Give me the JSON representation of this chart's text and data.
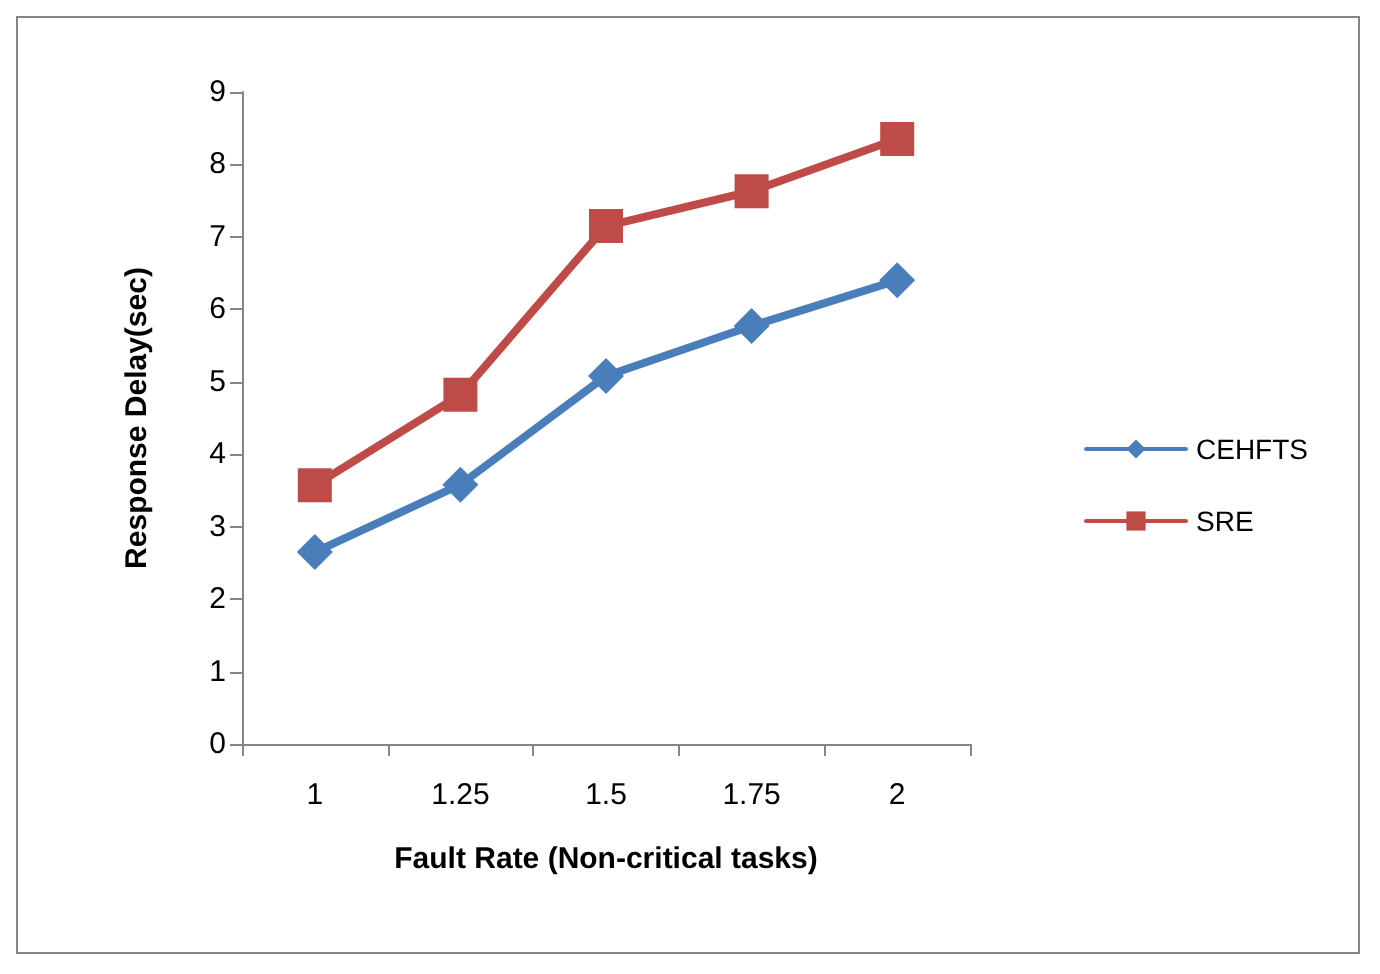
{
  "chart_data": {
    "type": "line",
    "xlabel": "Fault Rate (Non-critical tasks)",
    "ylabel": "Response Delay(sec)",
    "categories": [
      "1",
      "1.25",
      "1.5",
      "1.75",
      "2"
    ],
    "series": [
      {
        "name": "CEHFTS",
        "color": "#4a7ebb",
        "marker": "diamond",
        "values": [
          2.65,
          3.58,
          5.08,
          5.77,
          6.4
        ]
      },
      {
        "name": "SRE",
        "color": "#be4b48",
        "marker": "square",
        "values": [
          3.57,
          4.82,
          7.15,
          7.63,
          8.35
        ]
      }
    ],
    "ylim": [
      0,
      9
    ],
    "yticks": [
      0,
      1,
      2,
      3,
      4,
      5,
      6,
      7,
      8,
      9
    ],
    "grid": false,
    "legend": "right",
    "line_style": "solid"
  }
}
